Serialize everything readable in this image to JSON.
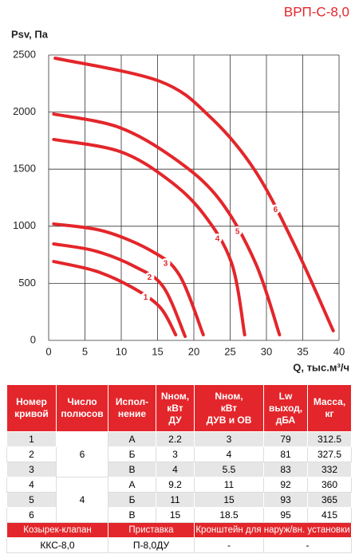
{
  "chart_data": {
    "type": "line",
    "title": "ВРП-С-8,0",
    "y_label": "Psv, Па",
    "x_label": "Q, тыс.м³/ч",
    "xlim": [
      0,
      40
    ],
    "xticks": [
      0,
      5,
      10,
      15,
      20,
      25,
      30,
      35,
      40
    ],
    "ylim": [
      0,
      2500
    ],
    "yticks": [
      0,
      500,
      1000,
      1500,
      2000,
      2500
    ],
    "grid": true,
    "series": [
      {
        "name": "1",
        "color": "#e3262b",
        "x": [
          0.7,
          6.5,
          11.4,
          15.3,
          17.5
        ],
        "values": [
          691,
          607,
          468,
          293,
          49
        ]
      },
      {
        "name": "2",
        "color": "#e3262b",
        "x": [
          0.7,
          6.5,
          12,
          15.8,
          18.8
        ],
        "values": [
          845,
          782,
          642,
          468,
          35
        ]
      },
      {
        "name": "3",
        "color": "#e3262b",
        "x": [
          0.7,
          7.6,
          14.2,
          18,
          21.3
        ],
        "values": [
          1020,
          957,
          782,
          573,
          49
        ]
      },
      {
        "name": "4",
        "color": "#e3262b",
        "x": [
          0.7,
          9.8,
          16.4,
          21.3,
          25.2,
          27
        ],
        "values": [
          1760,
          1655,
          1411,
          1110,
          677,
          49
        ]
      },
      {
        "name": "5",
        "color": "#e3262b",
        "x": [
          0.7,
          9.8,
          17.5,
          23.5,
          28.5,
          31.8
        ],
        "values": [
          1983,
          1864,
          1585,
          1236,
          677,
          49
        ]
      },
      {
        "name": "6",
        "color": "#e3262b",
        "x": [
          0.9,
          15.3,
          22.4,
          28.5,
          34,
          39.2
        ],
        "values": [
          2472,
          2270,
          1948,
          1480,
          817,
          84
        ]
      }
    ]
  },
  "table": {
    "header": [
      "Номер\nкривой",
      "Число\nполюсов",
      "Испол-\nнение",
      "Nном,\nкВт\nДУ",
      "Nном,\nкВт\nДУВ и ОВ",
      "Lw\nвыход,\nдБА",
      "Масса,\nкг"
    ],
    "rows": [
      [
        "1",
        "6",
        "А",
        "2.2",
        "3",
        "79",
        "312.5"
      ],
      [
        "2",
        "Б",
        "3",
        "4",
        "81",
        "327.5"
      ],
      [
        "3",
        "В",
        "4",
        "5.5",
        "83",
        "332"
      ],
      [
        "4",
        "4",
        "А",
        "9.2",
        "11",
        "92",
        "360"
      ],
      [
        "5",
        "Б",
        "11",
        "15",
        "93",
        "365"
      ],
      [
        "6",
        "В",
        "15",
        "18.5",
        "95",
        "415"
      ]
    ],
    "accessories_header": [
      "Козырек-клапан",
      "Приставка",
      "Кронштейн для наруж/вн. установки"
    ],
    "accessories": [
      "ККС-8,0",
      "П-8,0ДУ",
      "-",
      "-"
    ]
  }
}
